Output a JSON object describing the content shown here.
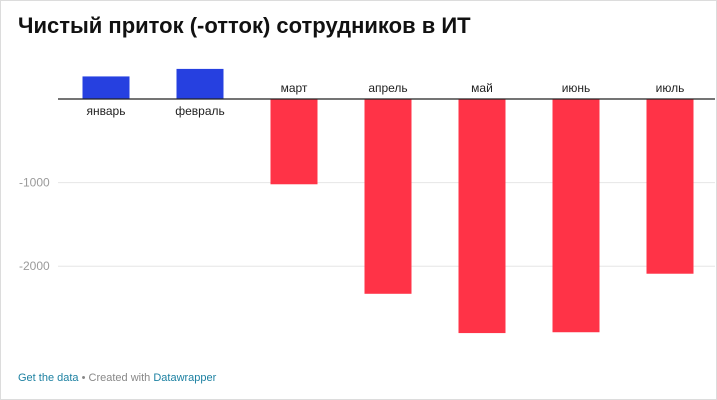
{
  "chart_title": "Чистый приток (-отток) сотрудников в ИТ",
  "footer": {
    "get_data": "Get the data",
    "separator": " • ",
    "created_with": "Created with ",
    "tool": "Datawrapper"
  },
  "colors": {
    "positive": "#2640e0",
    "negative": "#ff3347",
    "grid": "#e6e6e6",
    "axis": "#222222",
    "tick_text": "#9a9a9a",
    "label_text": "#222222",
    "link": "#1d81a2"
  },
  "chart_data": {
    "type": "bar",
    "title": "Чистый приток (-отток) сотрудников в ИТ",
    "xlabel": "",
    "ylabel": "",
    "categories": [
      "январь",
      "февраль",
      "март",
      "апрель",
      "май",
      "июнь",
      "июль"
    ],
    "values": [
      270,
      360,
      -1020,
      -2330,
      -2800,
      -2790,
      -2090
    ],
    "ylim": [
      -3000,
      450
    ],
    "yticks": [
      -1000,
      -2000
    ],
    "ytick_labels": [
      "-1000",
      "-2000"
    ],
    "grid": true,
    "legend": "none"
  }
}
